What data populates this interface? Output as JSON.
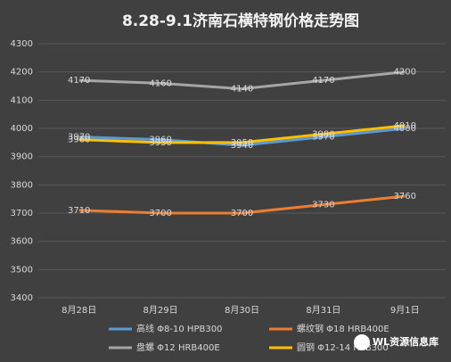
{
  "chart_data": {
    "type": "line",
    "title": "8.28-9.1济南石横特钢价格走势图",
    "categories": [
      "8月28日",
      "8月29日",
      "8月30日",
      "8月31日",
      "9月1日"
    ],
    "series": [
      {
        "name": "高线 Φ8-10 HPB300",
        "color": "#5b9bd5",
        "values": [
          3970,
          3960,
          3940,
          3970,
          4000
        ]
      },
      {
        "name": "螺纹钢 Φ18 HRB400E",
        "color": "#ed7d31",
        "values": [
          3710,
          3700,
          3700,
          3730,
          3760
        ]
      },
      {
        "name": "盘螺 Φ12 HRB400E",
        "color": "#a5a5a5",
        "values": [
          4170,
          4160,
          4140,
          4170,
          4200
        ]
      },
      {
        "name": "圆钢 Φ12-14 HPB300",
        "color": "#ffc000",
        "values": [
          3960,
          3950,
          3950,
          3980,
          4010
        ]
      }
    ],
    "ylim": [
      3400,
      4300
    ],
    "yticks": [
      3400,
      3500,
      3600,
      3700,
      3800,
      3900,
      4000,
      4100,
      4200,
      4300
    ],
    "grid": true,
    "watermark": "WL资源信息库"
  }
}
